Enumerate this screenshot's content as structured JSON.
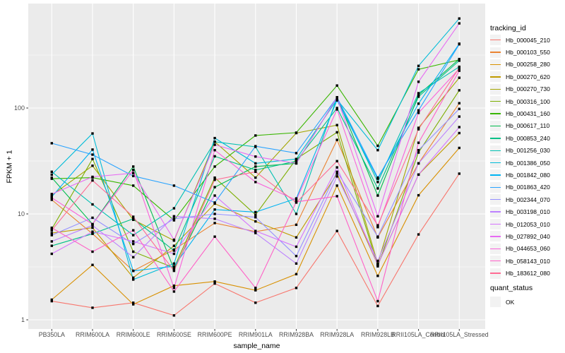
{
  "chart_data": {
    "type": "line",
    "title": "",
    "xlabel": "sample_name",
    "ylabel": "FPKM + 1",
    "y_scale": "log10",
    "y_ticks": [
      1,
      10,
      100
    ],
    "y_minor": [
      3.1623,
      31.623,
      316.23
    ],
    "ylim": [
      0.85,
      900
    ],
    "grid": "on",
    "legend_position": "right",
    "panel_bg": "#EBEBEB",
    "grid_color": "#FFFFFF",
    "tick_label_color": "#4D4D4D",
    "marker_color": "#000000",
    "categories": [
      "PB350LA",
      "RRIM600LA",
      "RRIM600LE",
      "RRIM600SE",
      "RRIM600PE",
      "RRIM901LA",
      "RRIM928BA",
      "RRIM928LA",
      "RRIM928LB",
      "RRII105LA_Control",
      "RRII105LA_Stressed"
    ],
    "legend": {
      "color_title": "tracking_id",
      "shape_title": "quant_status",
      "shape_items": [
        {
          "label": "OK"
        }
      ]
    },
    "series": [
      {
        "name": "Hb_000045_210",
        "color": "#F8766D",
        "values": [
          1.5,
          1.3,
          1.45,
          1.1,
          2.2,
          1.45,
          2.0,
          6.9,
          1.35,
          6.4,
          24
        ]
      },
      {
        "name": "Hb_000103_550",
        "color": "#EA8331",
        "values": [
          13.6,
          6.5,
          2.9,
          4.6,
          8.2,
          6.8,
          7.9,
          50,
          6.0,
          30,
          111
        ]
      },
      {
        "name": "Hb_000258_280",
        "color": "#D89000",
        "values": [
          1.55,
          3.3,
          1.4,
          2.1,
          2.3,
          1.9,
          2.7,
          18.5,
          2.6,
          15,
          42
        ]
      },
      {
        "name": "Hb_000270_620",
        "color": "#C09B00",
        "values": [
          6.6,
          7.4,
          2.5,
          5.0,
          12.5,
          8.5,
          6.0,
          24,
          3.3,
          23.5,
          58
        ]
      },
      {
        "name": "Hb_000270_730",
        "color": "#A3A500",
        "values": [
          15.0,
          28.5,
          8.8,
          5.6,
          48,
          22,
          58,
          69,
          3.4,
          65,
          193
        ]
      },
      {
        "name": "Hb_000316_100",
        "color": "#7CAE00",
        "values": [
          7.2,
          33,
          4.4,
          3.1,
          22,
          9.8,
          33,
          59,
          3.2,
          38,
          147
        ]
      },
      {
        "name": "Hb_000431_160",
        "color": "#39B600",
        "values": [
          21.5,
          22,
          18.5,
          8.7,
          28,
          55,
          58.5,
          163,
          44,
          232,
          285
        ]
      },
      {
        "name": "Hb_000617_110",
        "color": "#00BB4E",
        "values": [
          22,
          8.0,
          28,
          3.0,
          17.9,
          28,
          30,
          126,
          14.9,
          133,
          290
        ]
      },
      {
        "name": "Hb_000853_240",
        "color": "#00C087",
        "values": [
          5.0,
          6.5,
          9.0,
          4.5,
          35,
          26,
          31.5,
          100,
          17.4,
          128,
          280
        ]
      },
      {
        "name": "Hb_001256_030",
        "color": "#00C0B2",
        "values": [
          25,
          12.3,
          6.3,
          11.3,
          48,
          43,
          10,
          126,
          20,
          138,
          245
        ]
      },
      {
        "name": "Hb_001386_050",
        "color": "#00BCD8",
        "values": [
          23.5,
          57.5,
          2.4,
          3.4,
          52,
          30,
          33,
          120,
          40,
          250,
          700
        ]
      },
      {
        "name": "Hb_001842_080",
        "color": "#00B3F2",
        "values": [
          14.5,
          40.5,
          2.9,
          3.2,
          11.0,
          10.4,
          14.0,
          118,
          21.5,
          110,
          405
        ]
      },
      {
        "name": "Hb_001863_420",
        "color": "#29A3FF",
        "values": [
          46.5,
          36.3,
          22.8,
          18.5,
          12.8,
          43.6,
          37.5,
          126,
          22,
          95,
          400
        ]
      },
      {
        "name": "Hb_002344_070",
        "color": "#9590FF",
        "values": [
          6.3,
          9.2,
          5.2,
          9.0,
          10.0,
          9.3,
          4.0,
          25,
          6.1,
          40,
          98
        ]
      },
      {
        "name": "Hb_003198_010",
        "color": "#BC81FF",
        "values": [
          5.5,
          7.8,
          3.9,
          9.5,
          9.0,
          6.6,
          3.4,
          22.6,
          3.6,
          30,
          83
        ]
      },
      {
        "name": "Hb_012053_010",
        "color": "#D575FE",
        "values": [
          4.2,
          6.8,
          5.5,
          4.2,
          14.9,
          6.9,
          4.9,
          27.5,
          3.3,
          23.5,
          66
        ]
      },
      {
        "name": "Hb_027892_040",
        "color": "#E76BF3",
        "values": [
          15.4,
          22.4,
          24.3,
          5.7,
          45,
          34.8,
          30,
          126,
          9.5,
          177,
          630
        ]
      },
      {
        "name": "Hb_044653_060",
        "color": "#FA62DB",
        "values": [
          14.2,
          8.0,
          26,
          2.0,
          40,
          20,
          13.5,
          97,
          7.5,
          90,
          235
        ]
      },
      {
        "name": "Hb_058143_010",
        "color": "#FF61C7",
        "values": [
          7.4,
          4.4,
          7.0,
          1.85,
          6.1,
          2.0,
          13.0,
          14.7,
          1.5,
          47,
          225
        ]
      },
      {
        "name": "Hb_183612_080",
        "color": "#FF6B94",
        "values": [
          7.0,
          20.7,
          9.4,
          2.9,
          21,
          25,
          12.8,
          31.5,
          7.8,
          63,
          240
        ]
      }
    ]
  }
}
